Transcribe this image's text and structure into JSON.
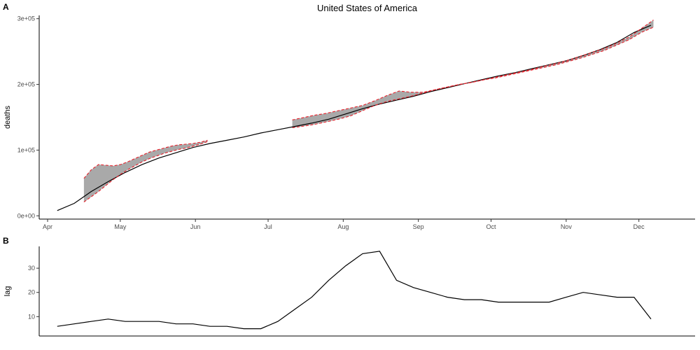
{
  "chart_data": [
    {
      "panel": "A",
      "type": "line",
      "title": "United States of America",
      "xlabel": "",
      "ylabel": "deaths",
      "xlim": [
        0,
        262
      ],
      "ylim": [
        -5000,
        305000
      ],
      "x_ticks": [
        {
          "x": 0,
          "label": "Apr"
        },
        {
          "x": 30,
          "label": "May"
        },
        {
          "x": 61,
          "label": "Jun"
        },
        {
          "x": 91,
          "label": "Jul"
        },
        {
          "x": 122,
          "label": "Aug"
        },
        {
          "x": 153,
          "label": "Sep"
        },
        {
          "x": 183,
          "label": "Oct"
        },
        {
          "x": 214,
          "label": "Nov"
        },
        {
          "x": 244,
          "label": "Dec"
        }
      ],
      "y_ticks": [
        {
          "y": 0,
          "label": "0e+00"
        },
        {
          "y": 100000,
          "label": "1e+05"
        },
        {
          "y": 200000,
          "label": "2e+05"
        },
        {
          "y": 300000,
          "label": "3e+05"
        }
      ],
      "grid": false,
      "series": [
        {
          "kind": "line",
          "color": "#000000",
          "x": [
            4,
            11,
            18,
            25,
            32,
            39,
            46,
            53,
            60,
            67,
            74,
            81,
            88,
            95,
            102,
            109,
            116,
            123,
            130,
            137,
            144,
            151,
            158,
            165,
            172,
            179,
            186,
            193,
            200,
            207,
            214,
            221,
            228,
            235,
            242,
            249
          ],
          "y": [
            8000,
            19000,
            37000,
            52000,
            66000,
            78000,
            88000,
            96000,
            104000,
            110000,
            115000,
            120000,
            126000,
            131000,
            136000,
            141000,
            147000,
            155000,
            163000,
            170000,
            176000,
            182000,
            189000,
            195000,
            201000,
            207000,
            213000,
            218000,
            224000,
            230000,
            236000,
            244000,
            253000,
            264000,
            279000,
            290000
          ]
        },
        {
          "kind": "ribbon",
          "fill": "#a9a9a9",
          "bound_color": "#e8202a",
          "x": [
            15,
            18,
            21,
            24,
            27,
            30,
            33,
            36,
            39,
            42,
            45,
            48,
            51,
            54,
            57,
            60,
            63,
            66
          ],
          "upper": [
            57000,
            70000,
            78000,
            77000,
            76000,
            78000,
            82000,
            87000,
            92000,
            97000,
            100000,
            103000,
            106000,
            108000,
            109000,
            110000,
            112000,
            115000
          ],
          "lower": [
            21000,
            29000,
            37000,
            46000,
            55000,
            63000,
            70000,
            76000,
            82000,
            87000,
            91000,
            95000,
            98000,
            101000,
            103000,
            106000,
            109000,
            113000
          ]
        },
        {
          "kind": "ribbon",
          "fill": "#a9a9a9",
          "bound_color": "#e8202a",
          "x": [
            101,
            105,
            110,
            115,
            120,
            125,
            130,
            135,
            140,
            145,
            150,
            155,
            160,
            165,
            170,
            175,
            180,
            185,
            190,
            195,
            200,
            205,
            210,
            215,
            220,
            225,
            230,
            235,
            240,
            245,
            250
          ],
          "upper": [
            146000,
            149000,
            153000,
            156000,
            160000,
            164000,
            168000,
            175000,
            183000,
            190000,
            188000,
            188000,
            192000,
            196000,
            200000,
            203000,
            207000,
            211000,
            215000,
            219000,
            223000,
            228000,
            232000,
            237000,
            243000,
            249000,
            255000,
            263000,
            272000,
            285000,
            298000
          ],
          "lower": [
            134000,
            136000,
            139000,
            143000,
            147000,
            152000,
            160000,
            168000,
            174000,
            178000,
            182000,
            187000,
            192000,
            196000,
            200000,
            203000,
            207000,
            210000,
            214000,
            218000,
            222000,
            226000,
            230000,
            235000,
            240000,
            246000,
            252000,
            260000,
            268000,
            279000,
            287000
          ]
        }
      ]
    },
    {
      "panel": "B",
      "type": "line",
      "title": "",
      "xlabel": "",
      "ylabel": "lag",
      "xlim": [
        0,
        262
      ],
      "ylim": [
        2,
        39
      ],
      "y_ticks": [
        {
          "y": 10,
          "label": "10"
        },
        {
          "y": 20,
          "label": "20"
        },
        {
          "y": 30,
          "label": "30"
        }
      ],
      "grid": false,
      "series": [
        {
          "kind": "line",
          "color": "#000000",
          "x": [
            4,
            11,
            18,
            25,
            32,
            39,
            46,
            53,
            60,
            67,
            74,
            81,
            88,
            95,
            102,
            109,
            116,
            123,
            130,
            137,
            144,
            151,
            158,
            165,
            172,
            179,
            186,
            193,
            200,
            207,
            214,
            221,
            228,
            235,
            242,
            249
          ],
          "y": [
            6,
            7,
            8,
            9,
            8,
            8,
            8,
            7,
            7,
            6,
            6,
            5,
            5,
            8,
            13,
            18,
            25,
            31,
            36,
            37,
            25,
            22,
            20,
            18,
            17,
            17,
            16,
            16,
            16,
            16,
            18,
            20,
            19,
            18,
            18,
            9
          ]
        }
      ]
    }
  ],
  "panel_labels": {
    "a": "A",
    "b": "B"
  }
}
